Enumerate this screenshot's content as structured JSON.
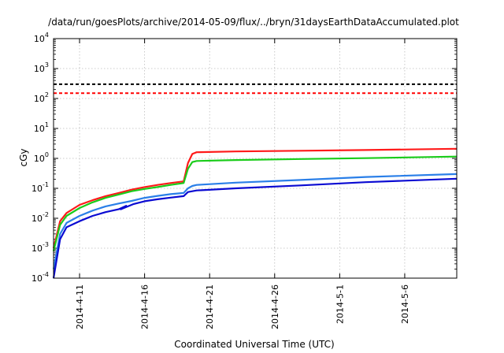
{
  "chart_data": {
    "type": "line",
    "title": "/data/run/goesPlots/archive/2014-05-09/flux/../bryn/31daysEarthDataAccumulated.plot",
    "xlabel": "Coordinated Universal Time (UTC)",
    "ylabel": "cGy",
    "y_scale": "log",
    "ylim": [
      0.0001,
      10000
    ],
    "xlim": [
      "2014-04-09",
      "2014-05-10"
    ],
    "x_ticks": [
      "2014-4-11",
      "2014-4-16",
      "2014-4-21",
      "2014-4-26",
      "2014-5-1",
      "2014-5-6"
    ],
    "y_ticks": [
      {
        "base": "10",
        "exp": "-4"
      },
      {
        "base": "10",
        "exp": "-3"
      },
      {
        "base": "10",
        "exp": "-2"
      },
      {
        "base": "10",
        "exp": "-1"
      },
      {
        "base": "10",
        "exp": "0"
      },
      {
        "base": "10",
        "exp": "1"
      },
      {
        "base": "10",
        "exp": "2"
      },
      {
        "base": "10",
        "exp": "3"
      },
      {
        "base": "10",
        "exp": "4"
      }
    ],
    "grid": true,
    "thresholds": [
      {
        "value": 300,
        "color": "#000000",
        "style": "dashed"
      },
      {
        "value": 150,
        "color": "#ff0000",
        "style": "dashed"
      }
    ],
    "series": [
      {
        "color": "#ff1a1a",
        "points": [
          [
            "2014-04-09",
            0.001
          ],
          [
            "2014-04-09T12:00",
            0.008
          ],
          [
            "2014-04-10",
            0.015
          ],
          [
            "2014-04-11",
            0.028
          ],
          [
            "2014-04-12",
            0.04
          ],
          [
            "2014-04-13",
            0.055
          ],
          [
            "2014-04-14",
            0.07
          ],
          [
            "2014-04-15",
            0.09
          ],
          [
            "2014-04-16",
            0.11
          ],
          [
            "2014-04-17",
            0.13
          ],
          [
            "2014-04-18",
            0.15
          ],
          [
            "2014-04-19",
            0.17
          ],
          [
            "2014-04-19T08:00",
            0.7
          ],
          [
            "2014-04-19T16:00",
            1.4
          ],
          [
            "2014-04-20",
            1.6
          ],
          [
            "2014-04-23",
            1.7
          ],
          [
            "2014-04-28",
            1.8
          ],
          [
            "2014-05-03",
            1.9
          ],
          [
            "2014-05-10",
            2.1
          ]
        ]
      },
      {
        "color": "#1acc1a",
        "points": [
          [
            "2014-04-09",
            0.0008
          ],
          [
            "2014-04-09T12:00",
            0.006
          ],
          [
            "2014-04-10",
            0.012
          ],
          [
            "2014-04-11",
            0.022
          ],
          [
            "2014-04-12",
            0.034
          ],
          [
            "2014-04-13",
            0.048
          ],
          [
            "2014-04-14",
            0.062
          ],
          [
            "2014-04-15",
            0.08
          ],
          [
            "2014-04-16",
            0.095
          ],
          [
            "2014-04-17",
            0.11
          ],
          [
            "2014-04-18",
            0.13
          ],
          [
            "2014-04-19",
            0.15
          ],
          [
            "2014-04-19T08:00",
            0.45
          ],
          [
            "2014-04-19T16:00",
            0.75
          ],
          [
            "2014-04-20",
            0.82
          ],
          [
            "2014-04-23",
            0.88
          ],
          [
            "2014-04-28",
            0.95
          ],
          [
            "2014-05-03",
            1.02
          ],
          [
            "2014-05-10",
            1.15
          ]
        ]
      },
      {
        "color": "#2a7fe8",
        "points": [
          [
            "2014-04-09",
            0.0002
          ],
          [
            "2014-04-09T12:00",
            0.003
          ],
          [
            "2014-04-10",
            0.007
          ],
          [
            "2014-04-11",
            0.012
          ],
          [
            "2014-04-12",
            0.018
          ],
          [
            "2014-04-13",
            0.025
          ],
          [
            "2014-04-14",
            0.031
          ],
          [
            "2014-04-15",
            0.038
          ],
          [
            "2014-04-16",
            0.048
          ],
          [
            "2014-04-17",
            0.056
          ],
          [
            "2014-04-18",
            0.064
          ],
          [
            "2014-04-19",
            0.07
          ],
          [
            "2014-04-19T08:00",
            0.1
          ],
          [
            "2014-04-19T16:00",
            0.12
          ],
          [
            "2014-04-20",
            0.13
          ],
          [
            "2014-04-23",
            0.155
          ],
          [
            "2014-04-28",
            0.19
          ],
          [
            "2014-05-03",
            0.24
          ],
          [
            "2014-05-10",
            0.3
          ]
        ]
      },
      {
        "color": "#0a0ad2",
        "points": [
          [
            "2014-04-09",
            0.0001
          ],
          [
            "2014-04-09T12:00",
            0.002
          ],
          [
            "2014-04-10",
            0.005
          ],
          [
            "2014-04-11",
            0.008
          ],
          [
            "2014-04-12",
            0.012
          ],
          [
            "2014-04-13",
            0.016
          ],
          [
            "2014-04-14",
            0.02
          ],
          [
            "2014-04-14T14:00",
            0.026
          ],
          [
            "2014-04-14T04:00",
            0.02
          ],
          [
            "2014-04-15T04:00",
            0.03
          ],
          [
            "2014-04-16",
            0.037
          ],
          [
            "2014-04-17",
            0.043
          ],
          [
            "2014-04-18",
            0.049
          ],
          [
            "2014-04-19",
            0.055
          ],
          [
            "2014-04-19T08:00",
            0.075
          ],
          [
            "2014-04-19T16:00",
            0.08
          ],
          [
            "2014-04-20",
            0.085
          ],
          [
            "2014-04-23",
            0.1
          ],
          [
            "2014-04-28",
            0.125
          ],
          [
            "2014-05-03",
            0.16
          ],
          [
            "2014-05-10",
            0.21
          ]
        ]
      }
    ]
  }
}
